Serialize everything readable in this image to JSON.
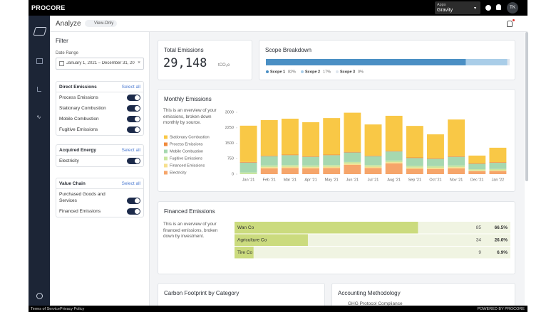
{
  "top_bar": {
    "logo": "PROCORE",
    "apps_label": "Apps",
    "apps_value": "Gravity",
    "avatar": "TK"
  },
  "header": {
    "title": "Analyze",
    "badge": "View-Only"
  },
  "filter": {
    "title": "Filter",
    "date_range_label": "Date Range",
    "date_range": "January 1, 2021 – December 31, 20",
    "groups": [
      {
        "title": "Direct Emissions",
        "action": "Select all",
        "items": [
          "Process Emissions",
          "Stationary Combustion",
          "Mobile Combustion",
          "Fugitive Emissions"
        ]
      },
      {
        "title": "Acquired Energy",
        "action": "Select all",
        "items": [
          "Electricity"
        ]
      },
      {
        "title": "Value Chain",
        "action": "Select all",
        "items": [
          "Purchased Goods and Services",
          "Financed Emissions"
        ]
      }
    ]
  },
  "total_emissions": {
    "title": "Total Emissions",
    "value": "29,148",
    "unit": "tCO₂e"
  },
  "chart_data": [
    {
      "type": "bar",
      "stacked": true,
      "title": "Monthly Emissions",
      "description": "This is an overview of your emissions, broken down monthly by source.",
      "categories": [
        "Jan '21",
        "Feb '21",
        "Mar '21",
        "Apr '21",
        "May '21",
        "Jun '21",
        "Jul '21",
        "Aug '21",
        "Sep '21",
        "Oct '21",
        "Nov '21",
        "Dec '21",
        "Jan '22"
      ],
      "series": [
        {
          "name": "Stationary Combustion",
          "color": "#f9c846",
          "values": [
            1760,
            1720,
            1740,
            1650,
            1770,
            1900,
            1510,
            1700,
            1530,
            1160,
            1780,
            370,
            700
          ]
        },
        {
          "name": "Process Emissions",
          "color": "#f08a3c",
          "values": [
            30,
            30,
            30,
            30,
            30,
            30,
            30,
            30,
            30,
            30,
            30,
            30,
            30
          ]
        },
        {
          "name": "Mobile Combustion",
          "color": "#a6d8b0",
          "values": [
            480,
            450,
            480,
            420,
            480,
            460,
            430,
            440,
            380,
            350,
            420,
            260,
            300
          ]
        },
        {
          "name": "Fugitive Emissions",
          "color": "#c9e6a0",
          "values": [
            80,
            80,
            80,
            80,
            80,
            80,
            80,
            80,
            80,
            80,
            80,
            60,
            60
          ]
        },
        {
          "name": "Financed Emissions",
          "color": "#f7e08e",
          "values": [
            0,
            60,
            60,
            60,
            60,
            60,
            60,
            60,
            60,
            60,
            60,
            40,
            40
          ]
        },
        {
          "name": "Electricity",
          "color": "#f6a56a",
          "values": [
            0,
            280,
            300,
            280,
            300,
            450,
            300,
            520,
            260,
            250,
            280,
            140,
            150
          ]
        }
      ],
      "ylim": [
        0,
        3000
      ],
      "yticks": [
        0,
        750,
        1500,
        2250,
        3000
      ],
      "legend": "left"
    },
    {
      "type": "bar",
      "orientation": "horizontal",
      "stacked": true,
      "title": "Scope Breakdown",
      "xlim": [
        0,
        100
      ],
      "series": [
        {
          "name": "Scope 1",
          "color": "#4a8fc4",
          "values": [
            82
          ],
          "value_labels": [
            "82%"
          ]
        },
        {
          "name": "Scope 2",
          "color": "#a9cde8",
          "values": [
            17
          ],
          "value_labels": [
            "17%"
          ]
        },
        {
          "name": "Scope 3",
          "color": "#dfe6ee",
          "values": [
            0
          ],
          "value_labels": [
            "0%"
          ]
        }
      ]
    },
    {
      "type": "bar",
      "orientation": "horizontal",
      "title": "Financed Emissions",
      "description": "This is an overview of your financed emissions, broken down by investment.",
      "categories": [
        "Wan Co",
        "Agriculture Co",
        "Tire Co"
      ],
      "amounts": [
        85,
        34,
        9
      ],
      "values": [
        66.5,
        26.6,
        6.9
      ],
      "value_labels": [
        "66.5%",
        "26.6%",
        "6.9%"
      ],
      "xlim": [
        0,
        100
      ],
      "color": "#cbdb7e"
    }
  ],
  "cards": {
    "carbon_footprint": "Carbon Footprint by Category",
    "accounting": "Accounting Methodology",
    "accounting_item": "GHG Protocol Compliance"
  },
  "footer": {
    "terms": "Terms of Service",
    "privacy": "Privacy Policy",
    "powered": "POWERED BY PROCORE"
  }
}
